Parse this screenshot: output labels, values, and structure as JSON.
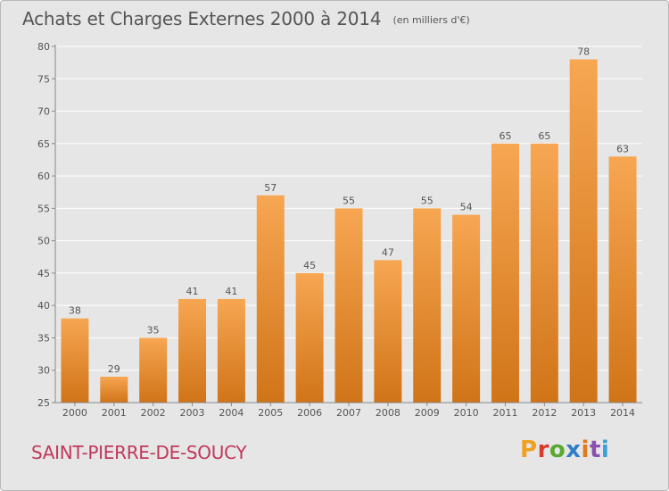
{
  "header": {
    "title": "Achats et Charges Externes 2000 à 2014",
    "unit": "(en milliers d'€)"
  },
  "footer": {
    "commune": "SAINT-PIERRE-DE-SOUCY",
    "logo_text": "Proxiti",
    "logo_colors": [
      "#f0a020",
      "#d83a2e",
      "#5aa832",
      "#2f7fc8",
      "#e07a1a",
      "#8a4fb0",
      "#3aa0d8"
    ]
  },
  "colors": {
    "background": "#e6e6e6",
    "bar_top": "#f7a652",
    "bar_bottom": "#d07418",
    "grid": "#ffffff",
    "axis_text": "#555555",
    "commune_text": "#c0385a"
  },
  "chart_data": {
    "type": "bar",
    "title": "Achats et Charges Externes 2000 à 2014",
    "subtitle": "(en milliers d'€)",
    "xlabel": "",
    "ylabel": "",
    "categories": [
      "2000",
      "2001",
      "2002",
      "2003",
      "2004",
      "2005",
      "2006",
      "2007",
      "2008",
      "2009",
      "2010",
      "2011",
      "2012",
      "2013",
      "2014"
    ],
    "values": [
      38,
      29,
      35,
      41,
      41,
      57,
      45,
      55,
      47,
      55,
      54,
      65,
      65,
      78,
      63
    ],
    "ylim": [
      25,
      80
    ],
    "yticks": [
      25,
      30,
      35,
      40,
      45,
      50,
      55,
      60,
      65,
      70,
      75,
      80
    ],
    "grid": true,
    "legend": "none",
    "data_labels": true
  }
}
